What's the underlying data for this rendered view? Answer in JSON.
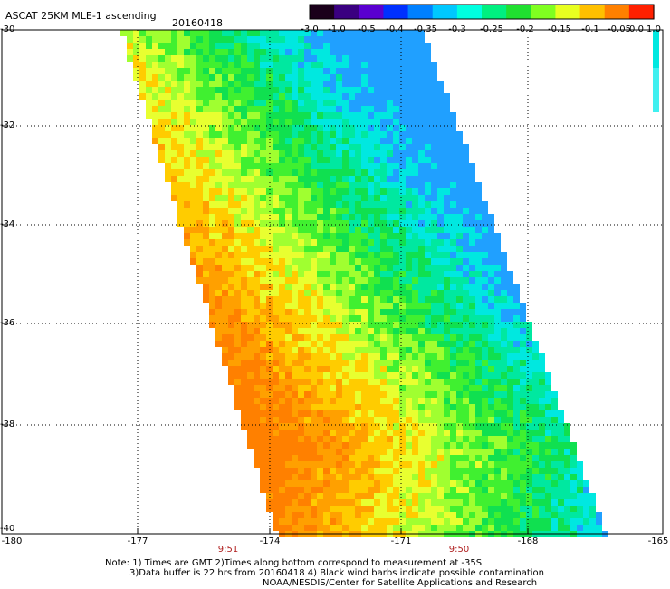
{
  "header": {
    "title": "ASCAT 25KM MLE-1 ascending",
    "date": "20160418"
  },
  "colorbar": {
    "labels": [
      "-3.0",
      "-1.0",
      "-0.5",
      "-0.4",
      "-0.35",
      "-0.3",
      "-0.25",
      "-0.2",
      "-0.15",
      "-0.1",
      "-0.05",
      "0.0",
      "1.0"
    ],
    "colors": [
      "#1a001a",
      "#3a0080",
      "#5a00d0",
      "#0030ff",
      "#0080ff",
      "#00c8ff",
      "#00ffe0",
      "#00f080",
      "#20e030",
      "#80ff20",
      "#e8ff20",
      "#ffc000",
      "#ff8000",
      "#ff2000"
    ]
  },
  "axes": {
    "y_labels": [
      "-30",
      "-32",
      "-34",
      "-36",
      "-38",
      "-40"
    ],
    "x_labels": [
      "-180",
      "-177",
      "-174",
      "-171",
      "-168",
      "-165"
    ],
    "time_labels": [
      "9:51",
      "9:50"
    ]
  },
  "notes": [
    "Note: 1) Times are GMT 2)Times along bottom correspond to measurement at -35S",
    "3)Data buffer is 22 hrs from 20160418 4) Black wind barbs indicate possible contamination",
    "NOAA/NESDIS/Center for Satellite Applications and Research"
  ]
}
